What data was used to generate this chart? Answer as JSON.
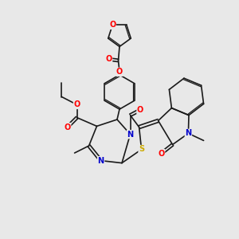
{
  "bg_color": "#e8e8e8",
  "bond_color": "#1a1a1a",
  "atom_colors": {
    "O": "#ff0000",
    "N": "#0000cc",
    "S": "#ccaa00",
    "C": "#1a1a1a"
  },
  "font_size": 7.0,
  "lw": 1.2,
  "lw2": 0.9
}
